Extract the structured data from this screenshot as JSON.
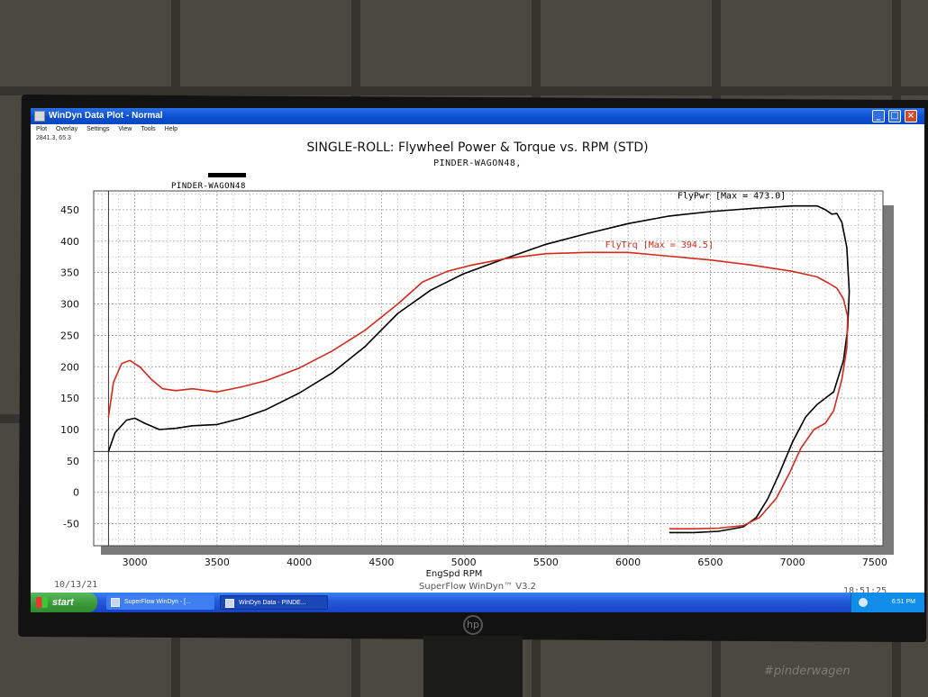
{
  "window": {
    "title": "WinDyn Data Plot - Normal",
    "menu": [
      "Plot",
      "Overlay",
      "Settings",
      "View",
      "Tools",
      "Help"
    ],
    "cursor_readout": "2841.3, 65.3",
    "controls": {
      "minimize": "_",
      "maximize": "□",
      "close": "×"
    }
  },
  "plot_header": {
    "title": "SINGLE-ROLL: Flywheel Power & Torque vs. RPM (STD)",
    "subtitle": "PINDER-WAGON48,",
    "run_label": "PINDER-WAGON48"
  },
  "footer": {
    "date": "10/13/21",
    "app": "SuperFlow WinDyn™ V3.2",
    "time": "18:51:25"
  },
  "taskbar": {
    "start_label": "start",
    "tasks": [
      "SuperFlow WinDyn - [...",
      "WinDyn Data - PINDE..."
    ],
    "clock": "6:51 PM"
  },
  "colors": {
    "power_line": "#000000",
    "torque_line": "#d42a1e",
    "grid": "#9a9a9a",
    "titlebar": "#0a4fd0"
  },
  "chart_data": {
    "type": "line",
    "title": "SINGLE-ROLL: Flywheel Power & Torque vs. RPM (STD)",
    "xlabel": "EngSpd RPM",
    "ylabel": "",
    "xlim": [
      2750,
      7550
    ],
    "ylim": [
      -85,
      480
    ],
    "x_ticks": [
      3000,
      3500,
      4000,
      4500,
      5000,
      5500,
      6000,
      6500,
      7000,
      7500
    ],
    "y_ticks": [
      -50,
      0,
      50,
      100,
      150,
      200,
      250,
      300,
      350,
      400,
      450
    ],
    "grid": true,
    "reference_lines": {
      "x": 2840,
      "y": 65
    },
    "series": [
      {
        "name": "FlyPwr",
        "annotation": "FlyPwr [Max = 473.0]",
        "points": [
          [
            2840,
            65
          ],
          [
            2880,
            95
          ],
          [
            2950,
            115
          ],
          [
            3000,
            118
          ],
          [
            3060,
            110
          ],
          [
            3150,
            100
          ],
          [
            3250,
            102
          ],
          [
            3350,
            106
          ],
          [
            3500,
            108
          ],
          [
            3650,
            118
          ],
          [
            3800,
            132
          ],
          [
            4000,
            158
          ],
          [
            4200,
            190
          ],
          [
            4400,
            232
          ],
          [
            4600,
            285
          ],
          [
            4800,
            322
          ],
          [
            5000,
            348
          ],
          [
            5250,
            372
          ],
          [
            5500,
            395
          ],
          [
            5750,
            412
          ],
          [
            6000,
            428
          ],
          [
            6250,
            440
          ],
          [
            6500,
            447
          ],
          [
            6750,
            452
          ],
          [
            7000,
            456
          ],
          [
            7150,
            456
          ],
          [
            7200,
            450
          ],
          [
            7240,
            443
          ],
          [
            7270,
            444
          ],
          [
            7300,
            430
          ],
          [
            7330,
            390
          ],
          [
            7345,
            320
          ],
          [
            7335,
            260
          ],
          [
            7310,
            210
          ],
          [
            7250,
            160
          ],
          [
            7200,
            150
          ],
          [
            7150,
            140
          ],
          [
            7080,
            120
          ],
          [
            7000,
            80
          ],
          [
            6920,
            30
          ],
          [
            6850,
            -10
          ],
          [
            6780,
            -40
          ],
          [
            6700,
            -55
          ],
          [
            6550,
            -62
          ],
          [
            6400,
            -64
          ],
          [
            6250,
            -64
          ]
        ]
      },
      {
        "name": "FlyTrq",
        "annotation": "FlyTrq [Max = 394.5]",
        "points": [
          [
            2840,
            120
          ],
          [
            2870,
            175
          ],
          [
            2920,
            205
          ],
          [
            2970,
            210
          ],
          [
            3030,
            200
          ],
          [
            3100,
            180
          ],
          [
            3170,
            165
          ],
          [
            3250,
            162
          ],
          [
            3350,
            165
          ],
          [
            3500,
            160
          ],
          [
            3650,
            168
          ],
          [
            3800,
            178
          ],
          [
            4000,
            198
          ],
          [
            4200,
            225
          ],
          [
            4400,
            258
          ],
          [
            4600,
            300
          ],
          [
            4750,
            335
          ],
          [
            4900,
            352
          ],
          [
            5050,
            362
          ],
          [
            5250,
            372
          ],
          [
            5500,
            380
          ],
          [
            5750,
            382
          ],
          [
            6000,
            382
          ],
          [
            6250,
            376
          ],
          [
            6500,
            370
          ],
          [
            6750,
            362
          ],
          [
            7000,
            352
          ],
          [
            7150,
            343
          ],
          [
            7220,
            333
          ],
          [
            7270,
            325
          ],
          [
            7310,
            308
          ],
          [
            7335,
            280
          ],
          [
            7330,
            230
          ],
          [
            7300,
            180
          ],
          [
            7250,
            130
          ],
          [
            7200,
            110
          ],
          [
            7130,
            100
          ],
          [
            7050,
            70
          ],
          [
            6980,
            30
          ],
          [
            6900,
            -10
          ],
          [
            6800,
            -40
          ],
          [
            6700,
            -53
          ],
          [
            6550,
            -57
          ],
          [
            6400,
            -58
          ],
          [
            6250,
            -58
          ]
        ]
      }
    ]
  }
}
